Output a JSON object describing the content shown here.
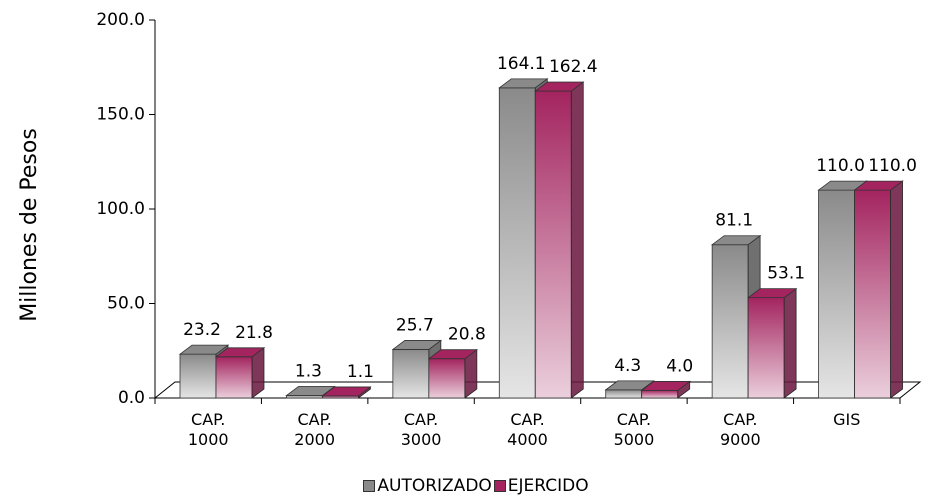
{
  "chart_data": {
    "type": "bar3d",
    "y_label": "Millones de Pesos",
    "categories": [
      "CAP. 1000",
      "CAP. 2000",
      "CAP. 3000",
      "CAP. 4000",
      "CAP. 5000",
      "CAP. 9000",
      "GIS"
    ],
    "series": [
      {
        "name": "AUTORIZADO",
        "color": "#8a8a8a",
        "values": [
          23.2,
          1.3,
          25.7,
          164.1,
          4.3,
          81.1,
          110.0
        ],
        "value_labels": [
          "23.2",
          "1.3",
          "25.7",
          "164.1",
          "4.3",
          "81.1",
          "110.0"
        ]
      },
      {
        "name": "EJERCIDO",
        "color": "#a3245f",
        "values": [
          21.8,
          1.1,
          20.8,
          162.4,
          4.0,
          53.1,
          110.0
        ],
        "value_labels": [
          "21.8",
          "1.1",
          "20.8",
          "162.4",
          "4.0",
          "53.1",
          "110.0"
        ]
      }
    ],
    "ylim": [
      0,
      200
    ],
    "yticks": [
      {
        "value": 0,
        "label": "0.0"
      },
      {
        "value": 50,
        "label": "50.0"
      },
      {
        "value": 100,
        "label": "100.0"
      },
      {
        "value": 150,
        "label": "150.0"
      },
      {
        "value": 200,
        "label": "200.0"
      }
    ],
    "legend": "bottom"
  }
}
